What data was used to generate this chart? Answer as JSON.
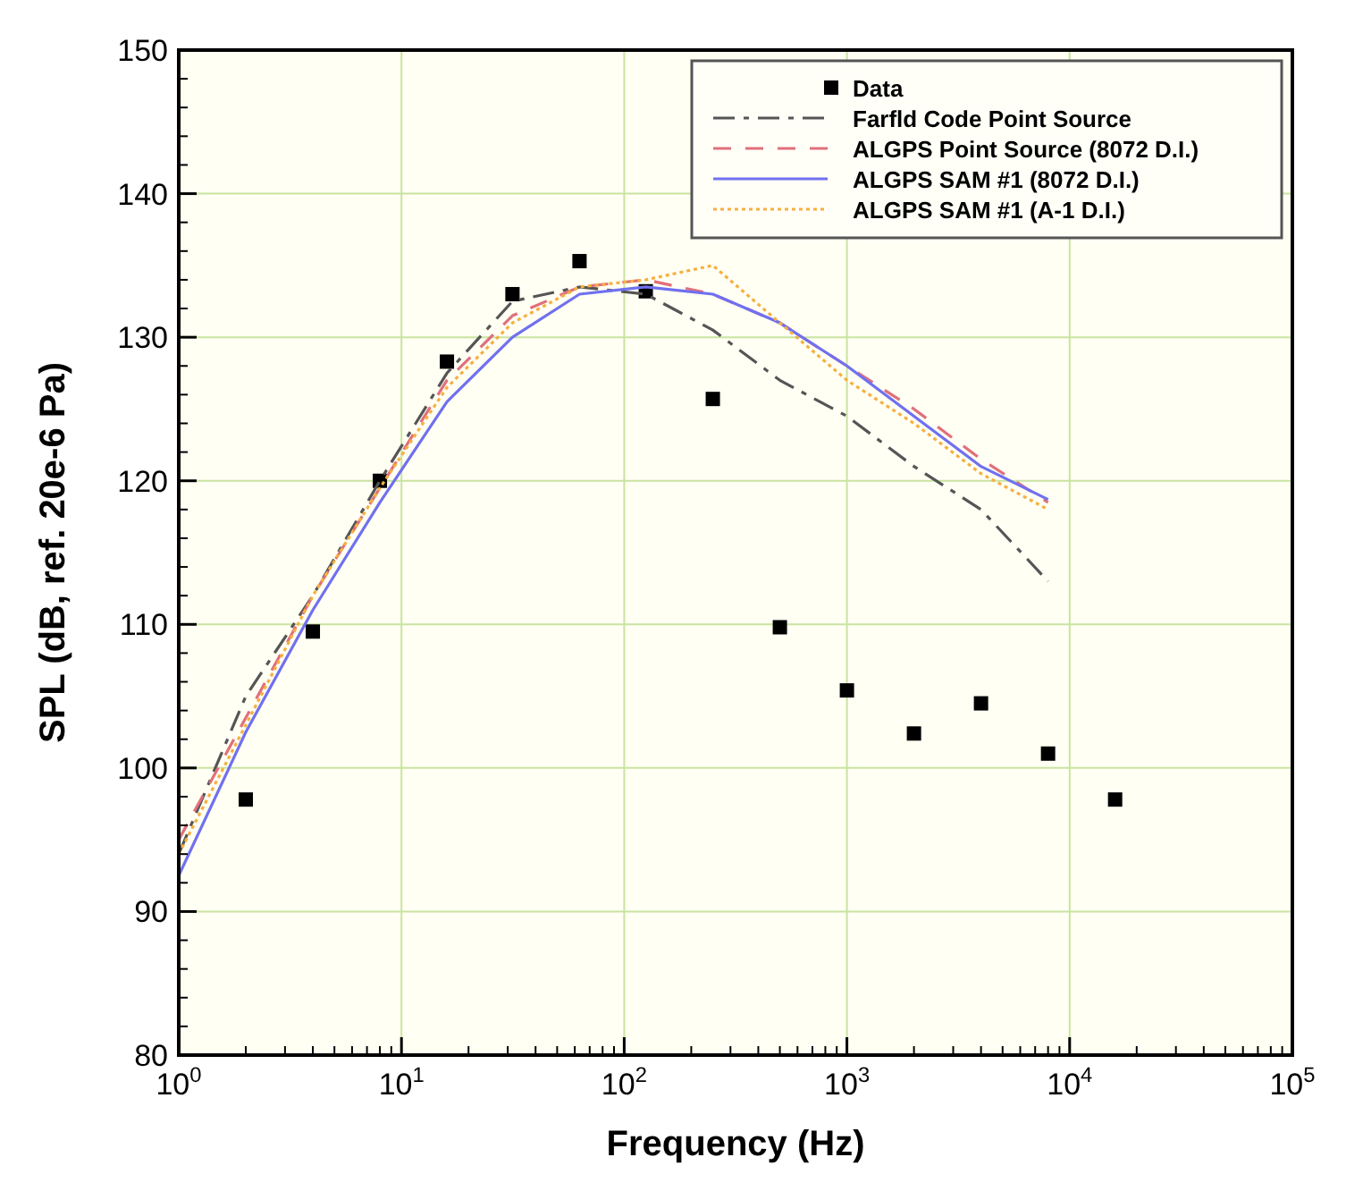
{
  "chart_data": {
    "type": "line",
    "xlabel": "Frequency (Hz)",
    "ylabel": "SPL (dB, ref. 20e-6 Pa)",
    "log": "x",
    "grid": true,
    "legend": "top right",
    "xlim": [
      1,
      100000
    ],
    "ylim": [
      80,
      150
    ],
    "xticks": [
      {
        "value": 1,
        "label": "10$^{0}$"
      },
      {
        "value": 10,
        "label": "10$^{1}$"
      },
      {
        "value": 100,
        "label": "10$^{2}$"
      },
      {
        "value": 1000,
        "label": "10$^{3}$"
      },
      {
        "value": 10000,
        "label": "10$^{4}$"
      },
      {
        "value": 100000,
        "label": "10$^{5}$"
      }
    ],
    "yticks": [
      80,
      90,
      100,
      110,
      120,
      130,
      140,
      150
    ],
    "series": [
      {
        "name": "Data",
        "type": "scatter",
        "marker": "square",
        "color": "#000000",
        "x": [
          2,
          4,
          8,
          16,
          31.5,
          63,
          125,
          250,
          500,
          1000,
          2000,
          4000,
          8000,
          16000
        ],
        "values": [
          97.8,
          109.5,
          120,
          128.3,
          133,
          135.3,
          133.2,
          125.7,
          109.8,
          105.4,
          102.4,
          104.5,
          101,
          97.8
        ]
      },
      {
        "name": "Farfld Code Point Source",
        "line_style": "dashdot",
        "color": "#555555",
        "x": [
          1,
          2,
          4,
          8,
          16,
          31.5,
          63,
          125,
          250,
          500,
          1000,
          2000,
          4000,
          8000
        ],
        "values": [
          94,
          105,
          112,
          120,
          127.5,
          132.5,
          133.5,
          133,
          130.5,
          127,
          124.5,
          121,
          118,
          113
        ]
      },
      {
        "name": "ALGPS Point Source (8072 D.I.)",
        "line_style": "dashed",
        "color": "#e0707a",
        "x": [
          1,
          2,
          4,
          8,
          16,
          31.5,
          63,
          125,
          250,
          500,
          1000,
          2000,
          4000,
          8000
        ],
        "values": [
          95,
          103.5,
          112,
          119.5,
          127,
          131.5,
          133.5,
          134,
          133,
          131,
          128,
          125,
          121.5,
          118.5
        ]
      },
      {
        "name": "ALGPS SAM #1 (8072 D.I.)",
        "line_style": "solid",
        "color": "#7070f0",
        "x": [
          1,
          2,
          4,
          8,
          16,
          31.5,
          63,
          125,
          250,
          500,
          1000,
          2000,
          4000,
          8000
        ],
        "values": [
          92.5,
          102.5,
          111,
          118.5,
          125.5,
          130,
          133,
          133.5,
          133,
          131,
          128,
          124.5,
          121,
          118.7
        ]
      },
      {
        "name": "ALGPS SAM #1 (A-1 D.I.)",
        "line_style": "dotted",
        "color": "#f5b040",
        "x": [
          1,
          2,
          4,
          8,
          16,
          31.5,
          63,
          125,
          250,
          500,
          1000,
          2000,
          4000,
          8000
        ],
        "values": [
          94,
          103,
          112,
          119.5,
          126.5,
          131,
          133.5,
          134,
          135,
          131,
          127,
          124,
          120.5,
          118
        ]
      }
    ]
  }
}
